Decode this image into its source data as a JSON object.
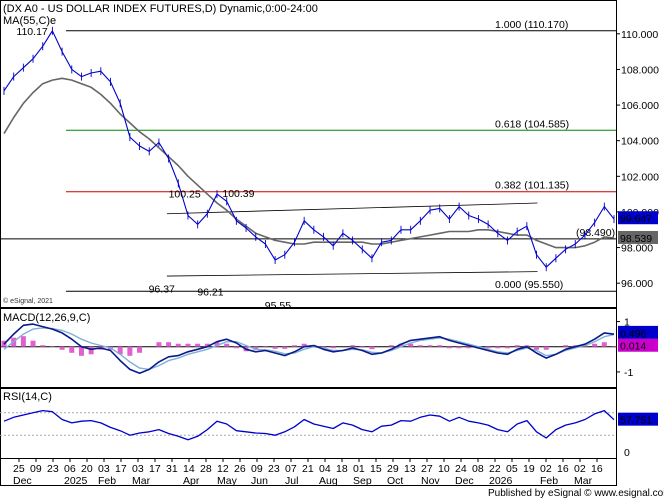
{
  "header": {
    "main_title": "(DX A0 - US DOLLAR INDEX FUTURES,D) Dynamic,0:00-24:00",
    "ma_label": "MA(55,C)e",
    "copyright": "© eSignal, 2021",
    "macd_label": "MACD(12,26,9,C)",
    "rsi_label": "RSI(14,C)",
    "footer": "Published by eSignal © www.esignal.com"
  },
  "colors": {
    "price": "#0000cc",
    "ma": "#666666",
    "fib_0382": "#cc0000",
    "fib_0618": "#008800",
    "fib_1000": "#000000",
    "macd_line": "#0a1a8a",
    "signal_line": "#7fb0d8",
    "histogram": "#e060d0",
    "rsi_line": "#0000cc",
    "badge_blue": "#0000cc",
    "badge_magenta": "#cc00cc",
    "badge_gray": "#666666"
  },
  "chart_data": [
    {
      "type": "line",
      "panel": "price",
      "title": "(DX A0 - US DOLLAR INDEX FUTURES,D) Dynamic,0:00-24:00",
      "ylim": [
        95,
        111
      ],
      "yticks": [
        {
          "value": 110,
          "label": "110.000"
        },
        {
          "value": 108,
          "label": "108.000"
        },
        {
          "value": 106,
          "label": "106.000"
        },
        {
          "value": 104,
          "label": "104.000"
        },
        {
          "value": 102,
          "label": "102.000"
        },
        {
          "value": 100,
          "label": "100.000"
        },
        {
          "value": 98,
          "label": "98.000"
        },
        {
          "value": 96,
          "label": "96.000"
        }
      ],
      "x_index_range": [
        0,
        63
      ],
      "x_tick_labels": [
        {
          "i": 0,
          "day": "25",
          "month": "Dec"
        },
        {
          "i": 1,
          "day": "09",
          "month": ""
        },
        {
          "i": 2,
          "day": "23",
          "month": ""
        },
        {
          "i": 3,
          "day": "06",
          "month": "2025"
        },
        {
          "i": 4,
          "day": "20",
          "month": ""
        },
        {
          "i": 5,
          "day": "03",
          "month": "Feb"
        },
        {
          "i": 6,
          "day": "17",
          "month": ""
        },
        {
          "i": 7,
          "day": "03",
          "month": "Mar"
        },
        {
          "i": 8,
          "day": "17",
          "month": ""
        },
        {
          "i": 9,
          "day": "31",
          "month": ""
        },
        {
          "i": 10,
          "day": "14",
          "month": "Apr"
        },
        {
          "i": 11,
          "day": "28",
          "month": ""
        },
        {
          "i": 12,
          "day": "12",
          "month": "May"
        },
        {
          "i": 13,
          "day": "26",
          "month": ""
        },
        {
          "i": 14,
          "day": "09",
          "month": "Jun"
        },
        {
          "i": 15,
          "day": "23",
          "month": ""
        },
        {
          "i": 16,
          "day": "07",
          "month": "Jul"
        },
        {
          "i": 17,
          "day": "21",
          "month": ""
        },
        {
          "i": 18,
          "day": "04",
          "month": "Aug"
        },
        {
          "i": 19,
          "day": "18",
          "month": ""
        },
        {
          "i": 20,
          "day": "01",
          "month": "Sep"
        },
        {
          "i": 21,
          "day": "15",
          "month": ""
        },
        {
          "i": 22,
          "day": "29",
          "month": "Oct"
        },
        {
          "i": 23,
          "day": "13",
          "month": ""
        },
        {
          "i": 24,
          "day": "27",
          "month": "Nov"
        },
        {
          "i": 25,
          "day": "10",
          "month": ""
        },
        {
          "i": 26,
          "day": "24",
          "month": "Dec"
        },
        {
          "i": 27,
          "day": "08",
          "month": ""
        },
        {
          "i": 28,
          "day": "22",
          "month": "2026"
        },
        {
          "i": 29,
          "day": "05",
          "month": ""
        },
        {
          "i": 30,
          "day": "19",
          "month": ""
        },
        {
          "i": 31,
          "day": "02",
          "month": "Feb"
        },
        {
          "i": 32,
          "day": "16",
          "month": ""
        },
        {
          "i": 33,
          "day": "02",
          "month": "Mar"
        },
        {
          "i": 34,
          "day": "16",
          "month": ""
        }
      ],
      "series": [
        {
          "name": "DX A0",
          "x": [
            0,
            1,
            2,
            3,
            4,
            5,
            6,
            7,
            8,
            9,
            10,
            11,
            12,
            13,
            14,
            15,
            16,
            17,
            18,
            19,
            20,
            21,
            22,
            23,
            24,
            25,
            26,
            27,
            28,
            29,
            30,
            31,
            32,
            33,
            34,
            35,
            36,
            37,
            38,
            39,
            40,
            41,
            42,
            43,
            44,
            45,
            46,
            47,
            48,
            49,
            50,
            51,
            52,
            53,
            54,
            55,
            56,
            57,
            58,
            59,
            60,
            61,
            62,
            63
          ],
          "values": [
            106.8,
            107.6,
            108.1,
            108.6,
            109.3,
            110.17,
            109.0,
            108.0,
            107.6,
            107.8,
            107.9,
            107.3,
            106.1,
            104.2,
            103.7,
            103.4,
            103.9,
            103.0,
            101.6,
            99.8,
            99.3,
            99.9,
            101.0,
            100.6,
            99.5,
            99.1,
            98.6,
            98.2,
            97.3,
            97.6,
            98.3,
            99.5,
            99.0,
            98.6,
            98.1,
            98.8,
            98.4,
            97.9,
            97.4,
            98.3,
            98.4,
            99.0,
            99.0,
            99.5,
            100.1,
            100.2,
            99.6,
            100.3,
            99.8,
            99.6,
            99.3,
            98.8,
            98.4,
            98.9,
            99.2,
            97.6,
            96.9,
            97.4,
            97.9,
            98.2,
            98.7,
            99.4,
            100.3,
            99.6
          ]
        },
        {
          "name": "MA(55,C)e",
          "x": [
            0,
            1,
            2,
            3,
            4,
            5,
            6,
            7,
            8,
            9,
            10,
            11,
            12,
            13,
            14,
            15,
            16,
            17,
            18,
            19,
            20,
            21,
            22,
            23,
            24,
            25,
            26,
            27,
            28,
            29,
            30,
            31,
            32,
            33,
            34,
            35,
            36,
            37,
            38,
            39,
            40,
            41,
            42,
            43,
            44,
            45,
            46,
            47,
            48,
            49,
            50,
            51,
            52,
            53,
            54,
            55,
            56,
            57,
            58,
            59,
            60,
            61,
            62,
            63
          ],
          "values": [
            104.4,
            105.3,
            106.1,
            106.7,
            107.2,
            107.4,
            107.5,
            107.4,
            107.2,
            107.0,
            106.6,
            106.1,
            105.5,
            105.0,
            104.5,
            104.1,
            103.6,
            103.1,
            102.6,
            102.0,
            101.5,
            101.0,
            100.5,
            100.1,
            99.6,
            99.2,
            98.8,
            98.6,
            98.4,
            98.3,
            98.2,
            98.2,
            98.3,
            98.3,
            98.3,
            98.3,
            98.3,
            98.3,
            98.2,
            98.2,
            98.3,
            98.4,
            98.5,
            98.6,
            98.7,
            98.8,
            98.9,
            98.9,
            98.9,
            99.0,
            99.0,
            98.9,
            98.8,
            98.7,
            98.7,
            98.4,
            98.2,
            98.0,
            98.0,
            98.0,
            98.1,
            98.3,
            98.6,
            98.539
          ]
        }
      ],
      "last_price": "99.647",
      "ma_value": "98.539",
      "support_level": {
        "value": 98.49,
        "label": "(98.490)"
      },
      "fibonacci": [
        {
          "value": 110.17,
          "label": "1.000 (110.170)",
          "color": "#000000"
        },
        {
          "value": 104.585,
          "label": "0.618 (104.585)",
          "color": "#008800"
        },
        {
          "value": 101.135,
          "label": "0.382 (101.135)",
          "color": "#cc0000"
        },
        {
          "value": 95.55,
          "label": "0.000 (95.550)",
          "color": "#000000"
        }
      ],
      "annotations": [
        {
          "text": "110.17",
          "i": 5,
          "value": 110.17
        },
        {
          "text": "100.25",
          "i": 17,
          "value": 100.25
        },
        {
          "text": "100.39",
          "i": 24,
          "value": 100.39
        },
        {
          "text": "96.37",
          "i": 17,
          "value": 96.37
        },
        {
          "text": "96.21",
          "i": 21,
          "value": 96.21
        },
        {
          "text": "95.55",
          "i": 29,
          "value": 95.55
        }
      ],
      "channels": [
        {
          "x1": 16,
          "y1": 99.9,
          "x2": 52,
          "y2": 100.5
        },
        {
          "x1": 16,
          "y1": 96.4,
          "x2": 52,
          "y2": 96.65
        }
      ]
    },
    {
      "type": "line",
      "panel": "macd",
      "title": "MACD(12,26,9,C)",
      "ylim": [
        -1.4,
        1.3
      ],
      "yticks": [
        {
          "value": 1,
          "label": "1"
        },
        {
          "value": -1,
          "label": "-1"
        }
      ],
      "zero_line": 0,
      "series": [
        {
          "name": "MACD",
          "values": [
            0.1,
            0.5,
            0.85,
            0.9,
            0.8,
            0.7,
            0.55,
            0.3,
            0.0,
            -0.1,
            -0.05,
            -0.15,
            -0.55,
            -0.9,
            -1.05,
            -0.9,
            -0.6,
            -0.4,
            -0.35,
            -0.2,
            -0.1,
            0.0,
            0.2,
            0.3,
            0.15,
            -0.1,
            -0.2,
            -0.15,
            -0.25,
            -0.35,
            -0.2,
            0.0,
            0.05,
            -0.1,
            -0.2,
            -0.15,
            -0.05,
            -0.15,
            -0.3,
            -0.25,
            -0.1,
            0.1,
            0.25,
            0.3,
            0.35,
            0.4,
            0.25,
            0.15,
            0.05,
            -0.05,
            -0.15,
            -0.25,
            -0.3,
            -0.1,
            0.0,
            -0.25,
            -0.45,
            -0.3,
            -0.1,
            0.0,
            0.1,
            0.3,
            0.55,
            0.496
          ]
        },
        {
          "name": "Signal",
          "values": [
            -0.1,
            0.2,
            0.5,
            0.7,
            0.75,
            0.72,
            0.65,
            0.5,
            0.3,
            0.15,
            0.05,
            -0.05,
            -0.3,
            -0.6,
            -0.85,
            -0.9,
            -0.75,
            -0.55,
            -0.45,
            -0.3,
            -0.2,
            -0.1,
            0.05,
            0.2,
            0.2,
            0.05,
            -0.1,
            -0.12,
            -0.18,
            -0.28,
            -0.25,
            -0.1,
            0.0,
            -0.05,
            -0.15,
            -0.15,
            -0.1,
            -0.12,
            -0.22,
            -0.25,
            -0.15,
            0.0,
            0.15,
            0.25,
            0.3,
            0.35,
            0.3,
            0.2,
            0.1,
            0.0,
            -0.1,
            -0.2,
            -0.25,
            -0.15,
            -0.05,
            -0.15,
            -0.35,
            -0.3,
            -0.15,
            -0.05,
            0.05,
            0.2,
            0.4,
            0.482
          ]
        }
      ],
      "histogram_value": "0.014",
      "macd_value": "0.496"
    },
    {
      "type": "line",
      "panel": "rsi",
      "title": "RSI(14,C)",
      "ylim": [
        0,
        100
      ],
      "levels": [
        70,
        30
      ],
      "series": [
        {
          "name": "RSI",
          "values": [
            55,
            62,
            66,
            70,
            74,
            72,
            58,
            52,
            55,
            56,
            52,
            44,
            38,
            30,
            34,
            36,
            40,
            33,
            28,
            22,
            28,
            40,
            55,
            50,
            38,
            36,
            34,
            33,
            30,
            36,
            45,
            58,
            50,
            46,
            42,
            52,
            48,
            40,
            36,
            46,
            48,
            56,
            55,
            62,
            66,
            64,
            55,
            62,
            55,
            52,
            48,
            40,
            36,
            50,
            56,
            36,
            25,
            40,
            48,
            52,
            58,
            68,
            74,
            57.751
          ]
        }
      ],
      "rsi_value": "57.751",
      "yticks": [
        {
          "value": 0,
          "label": "0"
        }
      ]
    }
  ]
}
